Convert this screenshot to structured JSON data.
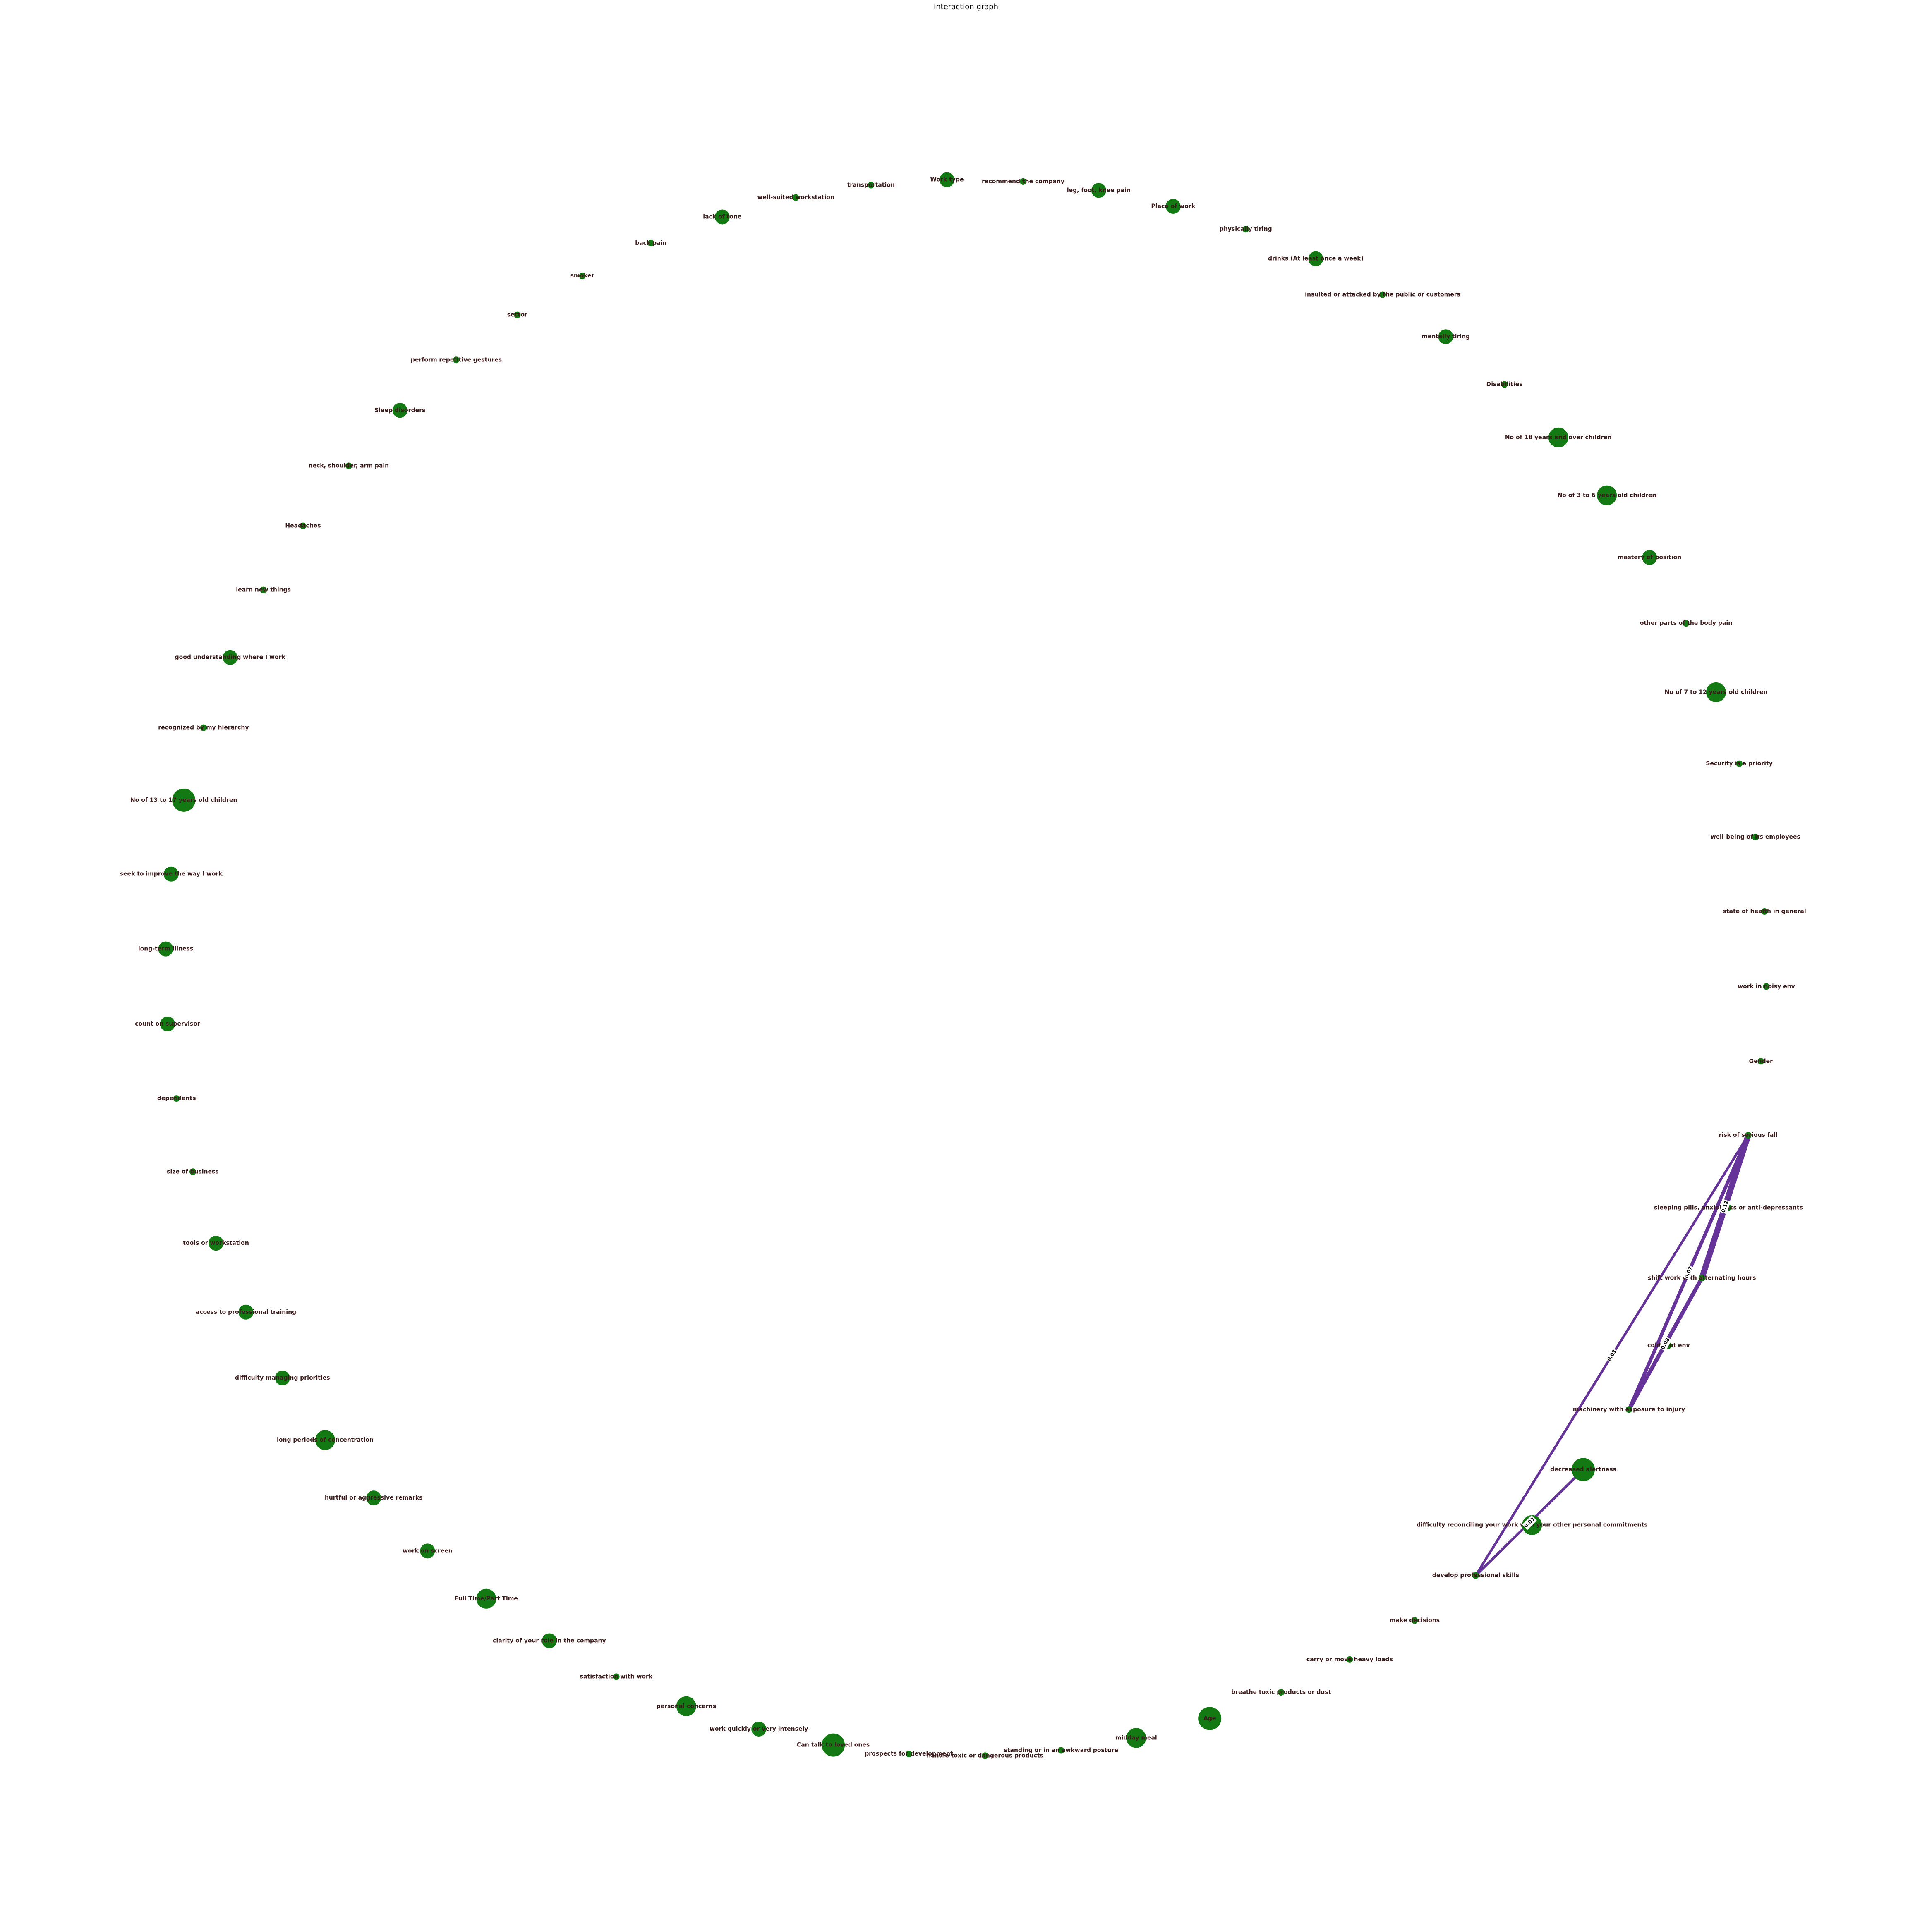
{
  "title": "Interaction graph",
  "colors": {
    "node": "#137a13",
    "edge": "#663399",
    "label": "#3a1a1a"
  },
  "nodes": [
    {
      "label": "size of business",
      "size": "small"
    },
    {
      "label": "dependents",
      "size": "small"
    },
    {
      "label": "count on supervisor",
      "size": "medium"
    },
    {
      "label": "long-term illness",
      "size": "medium"
    },
    {
      "label": "seek to improve the way I work",
      "size": "medium"
    },
    {
      "label": "No of 13 to 17 years old children",
      "size": "xlarge"
    },
    {
      "label": "recognized by my hierarchy",
      "size": "small"
    },
    {
      "label": "good understanding where I work",
      "size": "medium"
    },
    {
      "label": "learn new things",
      "size": "small"
    },
    {
      "label": "Headaches",
      "size": "small"
    },
    {
      "label": "neck, shoulder, arm pain",
      "size": "small"
    },
    {
      "label": "Sleep disorders",
      "size": "medium"
    },
    {
      "label": "perform repetitive gestures",
      "size": "small"
    },
    {
      "label": "sector",
      "size": "small"
    },
    {
      "label": "smoker",
      "size": "small"
    },
    {
      "label": "back pain",
      "size": "small"
    },
    {
      "label": "lack of tone",
      "size": "medium"
    },
    {
      "label": "well-suited workstation",
      "size": "small"
    },
    {
      "label": "transportation",
      "size": "small"
    },
    {
      "label": "Work type",
      "size": "medium"
    },
    {
      "label": "recommend the company",
      "size": "small"
    },
    {
      "label": "leg, foot, knee pain",
      "size": "medium"
    },
    {
      "label": "Place of work",
      "size": "medium"
    },
    {
      "label": "physically tiring",
      "size": "small"
    },
    {
      "label": "drinks (At least once a week)",
      "size": "medium"
    },
    {
      "label": "insulted or attacked by the public or customers",
      "size": "small"
    },
    {
      "label": "mentally tiring",
      "size": "medium"
    },
    {
      "label": "Disabilities",
      "size": "small"
    },
    {
      "label": "No of 18 years and over children",
      "size": "large"
    },
    {
      "label": "No of 3 to 6 years old children",
      "size": "large"
    },
    {
      "label": "mastery of position",
      "size": "medium"
    },
    {
      "label": "other parts of the body pain",
      "size": "small"
    },
    {
      "label": "No of 7 to 12 years old children",
      "size": "large"
    },
    {
      "label": "Security is a priority",
      "size": "small"
    },
    {
      "label": "well-being of its employees",
      "size": "small"
    },
    {
      "label": "state of health in general",
      "size": "small"
    },
    {
      "label": "work in noisy env",
      "size": "small"
    },
    {
      "label": "Gender",
      "size": "small"
    },
    {
      "label": "risk of serious fall",
      "size": "small"
    },
    {
      "label": "sleeping pills, anxiolytics or anti-depressants",
      "size": "small"
    },
    {
      "label": "shift work with alternating hours",
      "size": "small"
    },
    {
      "label": "cold, hot env",
      "size": "small"
    },
    {
      "label": "machinery with exposure to injury",
      "size": "small"
    },
    {
      "label": "decreased alertness",
      "size": "xlarge"
    },
    {
      "label": "difficulty reconciling your work with your other personal commitments",
      "size": "large"
    },
    {
      "label": "develop professional skills",
      "size": "small"
    },
    {
      "label": "make decisions",
      "size": "small"
    },
    {
      "label": "carry or move heavy loads",
      "size": "small"
    },
    {
      "label": "breathe toxic products or dust",
      "size": "small"
    },
    {
      "label": "Age",
      "size": "xlarge"
    },
    {
      "label": "midday meal",
      "size": "large"
    },
    {
      "label": "standing or in an awkward posture",
      "size": "small"
    },
    {
      "label": "handle toxic or dangerous products",
      "size": "small"
    },
    {
      "label": "prospects for development",
      "size": "small"
    },
    {
      "label": "Can talk to loved ones",
      "size": "xlarge"
    },
    {
      "label": "work quickly or very intensely",
      "size": "medium"
    },
    {
      "label": "personal concerns",
      "size": "large"
    },
    {
      "label": "satisfaction with work",
      "size": "small"
    },
    {
      "label": "clarity of your role in the company",
      "size": "medium"
    },
    {
      "label": "Full Time/Part Time",
      "size": "large"
    },
    {
      "label": "work on screen",
      "size": "medium"
    },
    {
      "label": "hurtful or aggressive remarks",
      "size": "medium"
    },
    {
      "label": "long periods of concentration",
      "size": "large"
    },
    {
      "label": "difficulty managing priorities",
      "size": "medium"
    },
    {
      "label": "access to professional training",
      "size": "medium"
    },
    {
      "label": "tools or workstation",
      "size": "medium"
    }
  ],
  "edges": [
    {
      "source": "develop professional skills",
      "target": "decreased alertness",
      "weight": "0.03"
    },
    {
      "source": "develop professional skills",
      "target": "risk of serious fall",
      "weight": "0.03"
    },
    {
      "source": "machinery with exposure to injury",
      "target": "shift work with alternating hours",
      "weight": "0.08"
    },
    {
      "source": "machinery with exposure to injury",
      "target": "risk of serious fall",
      "weight": "0.07"
    },
    {
      "source": "shift work with alternating hours",
      "target": "risk of serious fall",
      "weight": "0.12"
    }
  ]
}
